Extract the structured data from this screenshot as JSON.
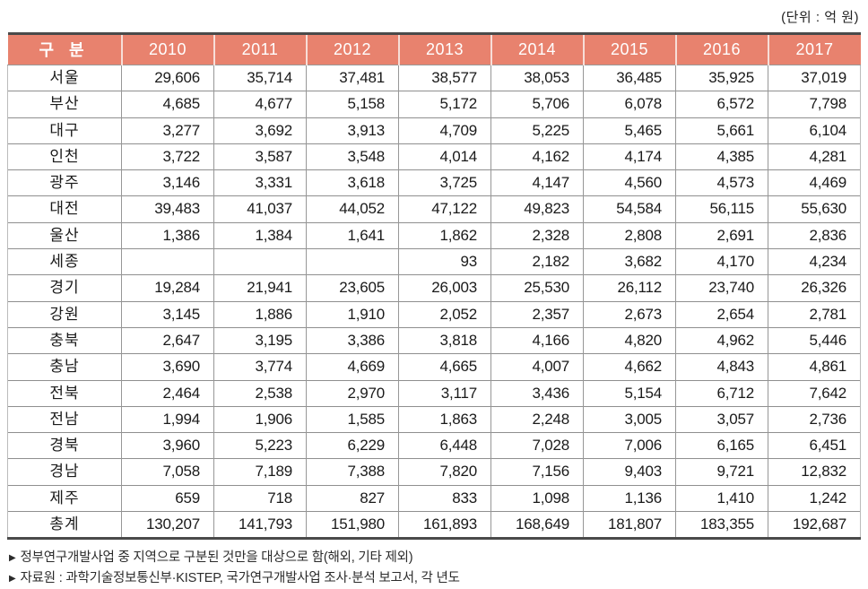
{
  "unit_label": "(단위 : 억 원)",
  "footnote_marker": "▶",
  "table": {
    "header": [
      "구 분",
      "2010",
      "2011",
      "2012",
      "2013",
      "2014",
      "2015",
      "2016",
      "2017"
    ],
    "rows": [
      {
        "label": "서울",
        "values": [
          "29,606",
          "35,714",
          "37,481",
          "38,577",
          "38,053",
          "36,485",
          "35,925",
          "37,019"
        ]
      },
      {
        "label": "부산",
        "values": [
          "4,685",
          "4,677",
          "5,158",
          "5,172",
          "5,706",
          "6,078",
          "6,572",
          "7,798"
        ]
      },
      {
        "label": "대구",
        "values": [
          "3,277",
          "3,692",
          "3,913",
          "4,709",
          "5,225",
          "5,465",
          "5,661",
          "6,104"
        ]
      },
      {
        "label": "인천",
        "values": [
          "3,722",
          "3,587",
          "3,548",
          "4,014",
          "4,162",
          "4,174",
          "4,385",
          "4,281"
        ]
      },
      {
        "label": "광주",
        "values": [
          "3,146",
          "3,331",
          "3,618",
          "3,725",
          "4,147",
          "4,560",
          "4,573",
          "4,469"
        ]
      },
      {
        "label": "대전",
        "values": [
          "39,483",
          "41,037",
          "44,052",
          "47,122",
          "49,823",
          "54,584",
          "56,115",
          "55,630"
        ]
      },
      {
        "label": "울산",
        "values": [
          "1,386",
          "1,384",
          "1,641",
          "1,862",
          "2,328",
          "2,808",
          "2,691",
          "2,836"
        ]
      },
      {
        "label": "세종",
        "values": [
          "",
          "",
          "",
          "93",
          "2,182",
          "3,682",
          "4,170",
          "4,234"
        ]
      },
      {
        "label": "경기",
        "values": [
          "19,284",
          "21,941",
          "23,605",
          "26,003",
          "25,530",
          "26,112",
          "23,740",
          "26,326"
        ]
      },
      {
        "label": "강원",
        "values": [
          "3,145",
          "1,886",
          "1,910",
          "2,052",
          "2,357",
          "2,673",
          "2,654",
          "2,781"
        ]
      },
      {
        "label": "충북",
        "values": [
          "2,647",
          "3,195",
          "3,386",
          "3,818",
          "4,166",
          "4,820",
          "4,962",
          "5,446"
        ]
      },
      {
        "label": "충남",
        "values": [
          "3,690",
          "3,774",
          "4,669",
          "4,665",
          "4,007",
          "4,662",
          "4,843",
          "4,861"
        ]
      },
      {
        "label": "전북",
        "values": [
          "2,464",
          "2,538",
          "2,970",
          "3,117",
          "3,436",
          "5,154",
          "6,712",
          "7,642"
        ]
      },
      {
        "label": "전남",
        "values": [
          "1,994",
          "1,906",
          "1,585",
          "1,863",
          "2,248",
          "3,005",
          "3,057",
          "2,736"
        ]
      },
      {
        "label": "경북",
        "values": [
          "3,960",
          "5,223",
          "6,229",
          "6,448",
          "7,028",
          "7,006",
          "6,165",
          "6,451"
        ]
      },
      {
        "label": "경남",
        "values": [
          "7,058",
          "7,189",
          "7,388",
          "7,820",
          "7,156",
          "9,403",
          "9,721",
          "12,832"
        ]
      },
      {
        "label": "제주",
        "values": [
          "659",
          "718",
          "827",
          "833",
          "1,098",
          "1,136",
          "1,410",
          "1,242"
        ]
      },
      {
        "label": "총계",
        "values": [
          "130,207",
          "141,793",
          "151,980",
          "161,893",
          "168,649",
          "181,807",
          "183,355",
          "192,687"
        ]
      }
    ]
  },
  "footnotes": [
    "정부연구개발사업 중 지역으로 구분된 것만을 대상으로 함(해외, 기타 제외)",
    "자료원 : 과학기술정보통신부·KISTEP, 국가연구개발사업 조사·분석 보고서, 각 년도"
  ],
  "colors": {
    "header_bg": "#e8826e",
    "header_text": "#ffffff",
    "border_dark": "#4a4a4a",
    "grid_line": "#979797",
    "text": "#1a1a1a"
  }
}
